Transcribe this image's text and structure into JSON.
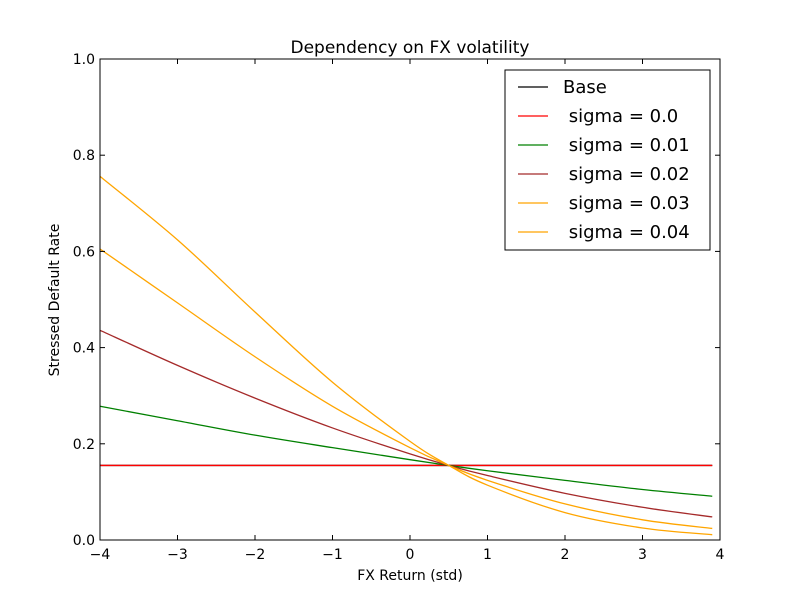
{
  "chart_data": {
    "type": "line",
    "title": "Dependency on FX volatility",
    "xlabel": "FX Return (std)",
    "ylabel": "Stressed Default Rate",
    "xlim": [
      -4,
      4
    ],
    "ylim": [
      0,
      1.0
    ],
    "xticks": [
      "−4",
      "−3",
      "−2",
      "−1",
      "0",
      "1",
      "2",
      "3",
      "4"
    ],
    "xtick_values": [
      -4,
      -3,
      -2,
      -1,
      0,
      1,
      2,
      3,
      4
    ],
    "yticks": [
      "0.0",
      "0.2",
      "0.4",
      "0.6",
      "0.8",
      "1.0"
    ],
    "ytick_values": [
      0,
      0.2,
      0.4,
      0.6,
      0.8,
      1.0
    ],
    "grid": false,
    "legend_position": "top-right",
    "x": [
      -4,
      -3,
      -2,
      -1,
      0,
      0.5,
      1,
      2,
      3,
      3.9
    ],
    "series": [
      {
        "name": "Base",
        "color": "#000000",
        "values": [
          0.155,
          0.155,
          0.155,
          0.155,
          0.155,
          0.155,
          0.155,
          0.155,
          0.155,
          0.155
        ]
      },
      {
        "name": " sigma = 0.0",
        "color": "#ff0000",
        "values": [
          0.155,
          0.155,
          0.155,
          0.155,
          0.155,
          0.155,
          0.155,
          0.155,
          0.155,
          0.155
        ]
      },
      {
        "name": " sigma = 0.01",
        "color": "#008000",
        "values": [
          0.278,
          0.248,
          0.218,
          0.192,
          0.167,
          0.155,
          0.144,
          0.124,
          0.105,
          0.091
        ]
      },
      {
        "name": " sigma = 0.02",
        "color": "#a52a2a",
        "values": [
          0.436,
          0.363,
          0.295,
          0.233,
          0.179,
          0.155,
          0.134,
          0.097,
          0.068,
          0.048
        ]
      },
      {
        "name": " sigma = 0.03",
        "color": "#ffa500",
        "values": [
          0.605,
          0.493,
          0.381,
          0.278,
          0.192,
          0.155,
          0.124,
          0.075,
          0.042,
          0.024
        ]
      },
      {
        "name": " sigma = 0.04",
        "color": "#ffa500",
        "values": [
          0.756,
          0.624,
          0.474,
          0.328,
          0.205,
          0.155,
          0.114,
          0.057,
          0.025,
          0.011
        ]
      }
    ]
  }
}
